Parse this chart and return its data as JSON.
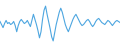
{
  "line_color": "#4da6e0",
  "background_color": "#ffffff",
  "linewidth": 0.8,
  "values": [
    0.1,
    -0.2,
    -0.5,
    -0.1,
    0.2,
    -0.1,
    0.0,
    -0.2,
    -0.1,
    0.1,
    -0.3,
    -0.9,
    -0.3,
    0.1,
    0.3,
    0.1,
    -0.1,
    0.0,
    0.2,
    -0.1,
    -0.4,
    0.2,
    0.8,
    0.3,
    -0.2,
    -0.8,
    -1.5,
    -0.9,
    0.3,
    1.2,
    1.6,
    0.8,
    0.1,
    -0.6,
    -1.4,
    -1.8,
    -1.0,
    -0.2,
    0.4,
    1.0,
    1.4,
    1.0,
    0.4,
    -0.2,
    -0.6,
    -0.9,
    -0.5,
    -0.1,
    0.3,
    0.6,
    0.8,
    0.5,
    0.2,
    -0.1,
    -0.3,
    -0.2,
    0.0,
    0.2,
    0.3,
    0.1,
    -0.2,
    -0.4,
    -0.2,
    0.1,
    0.3,
    0.4,
    0.2,
    0.0,
    -0.1,
    -0.2,
    0.0,
    0.2,
    0.1,
    -0.1,
    -0.3,
    -0.1,
    0.1,
    0.2,
    0.1,
    0.0
  ]
}
